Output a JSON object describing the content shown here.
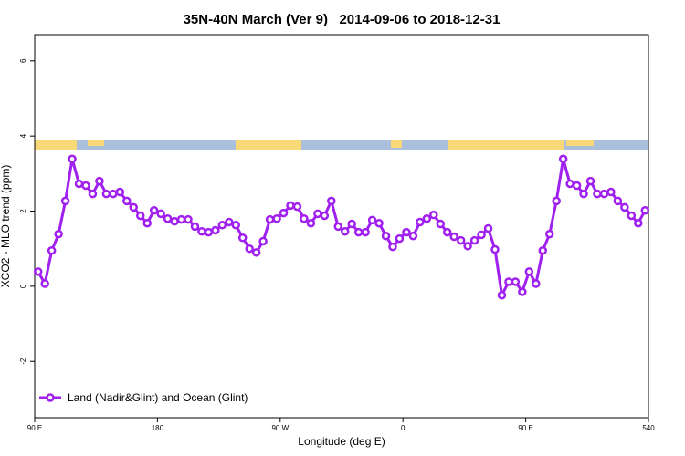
{
  "chart_data": {
    "type": "line",
    "title": "35N-40N March (Ver 9)   2014-09-06 to 2018-12-31",
    "x_label": "Longitude (deg E)",
    "y_label": "XCO2 - MLO trend (ppm)",
    "x": [
      92.5,
      97.5,
      102.5,
      107.5,
      112.5,
      117.5,
      122.5,
      127.5,
      132.5,
      137.5,
      142.5,
      147.5,
      152.5,
      157.5,
      162.5,
      167.5,
      172.5,
      177.5,
      182.5,
      187.5,
      192.5,
      197.5,
      202.5,
      207.5,
      212.5,
      217.5,
      222.5,
      227.5,
      232.5,
      237.5,
      242.5,
      247.5,
      252.5,
      257.5,
      262.5,
      267.5,
      272.5,
      277.5,
      282.5,
      287.5,
      292.5,
      297.5,
      302.5,
      307.5,
      312.5,
      317.5,
      322.5,
      327.5,
      332.5,
      337.5,
      342.5,
      347.5,
      352.5,
      357.5,
      362.5,
      367.5,
      372.5,
      377.5,
      382.5,
      387.5,
      392.5,
      397.5,
      402.5,
      407.5,
      412.5,
      417.5,
      422.5,
      427.5,
      432.5,
      437.5,
      442.5,
      447.5,
      452.5,
      457.5,
      462.5,
      467.5,
      472.5,
      477.5,
      482.5,
      487.5,
      492.5,
      497.5,
      502.5,
      507.5,
      512.5,
      517.5,
      522.5,
      527.5,
      532.5,
      537.5
    ],
    "series": [
      {
        "name": "Land (Nadir&Glint) and Ocean (Glint)",
        "color": "#a020f0",
        "values": [
          0.39,
          0.07,
          0.95,
          1.39,
          2.27,
          3.39,
          2.73,
          2.68,
          2.46,
          2.8,
          2.46,
          2.46,
          2.51,
          2.27,
          2.1,
          1.88,
          1.68,
          2.02,
          1.93,
          1.8,
          1.73,
          1.78,
          1.78,
          1.59,
          1.46,
          1.44,
          1.49,
          1.63,
          1.71,
          1.63,
          1.29,
          1.0,
          0.9,
          1.2,
          1.78,
          1.8,
          1.95,
          2.15,
          2.12,
          1.8,
          1.68,
          1.93,
          1.88,
          2.27,
          1.59,
          1.46,
          1.66,
          1.44,
          1.44,
          1.76,
          1.68,
          1.34,
          1.05,
          1.27,
          1.44,
          1.34,
          1.71,
          1.8,
          1.9,
          1.66,
          1.44,
          1.32,
          1.22,
          1.07,
          1.22,
          1.37,
          1.54,
          0.98,
          -0.24,
          0.12,
          0.12,
          -0.15,
          0.39,
          0.07,
          0.95,
          1.39,
          2.27,
          3.39,
          2.73,
          2.68,
          2.46,
          2.8,
          2.46,
          2.46,
          2.51,
          2.27,
          2.1,
          1.88,
          1.68,
          2.02
        ]
      }
    ],
    "xlim": [
      90,
      540
    ],
    "xticks": [
      {
        "value": 90,
        "label": "90 E"
      },
      180,
      {
        "value": 270,
        "label": "90 W"
      },
      0,
      {
        "value": 450,
        "label": "90 E"
      },
      540
    ],
    "ylim": [
      -3.5,
      6.7
    ],
    "yticks": [
      -2,
      0,
      2,
      4,
      6
    ],
    "legend": "bottom-left"
  }
}
